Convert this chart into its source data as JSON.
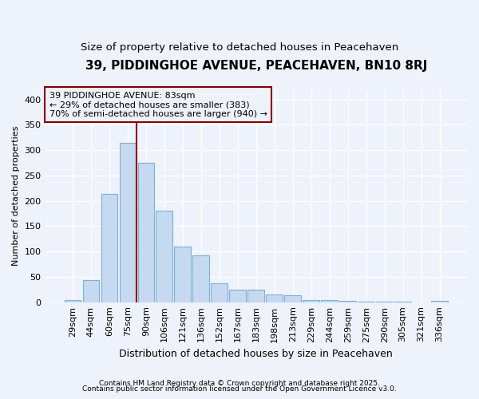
{
  "title": "39, PIDDINGHOE AVENUE, PEACEHAVEN, BN10 8RJ",
  "subtitle": "Size of property relative to detached houses in Peacehaven",
  "xlabel": "Distribution of detached houses by size in Peacehaven",
  "ylabel": "Number of detached properties",
  "bar_labels": [
    "29sqm",
    "44sqm",
    "60sqm",
    "75sqm",
    "90sqm",
    "106sqm",
    "121sqm",
    "136sqm",
    "152sqm",
    "167sqm",
    "183sqm",
    "198sqm",
    "213sqm",
    "229sqm",
    "244sqm",
    "259sqm",
    "275sqm",
    "290sqm",
    "305sqm",
    "321sqm",
    "336sqm"
  ],
  "bar_values": [
    5,
    43,
    213,
    315,
    275,
    180,
    110,
    93,
    38,
    25,
    25,
    15,
    13,
    5,
    5,
    2,
    1,
    1,
    1,
    0,
    3
  ],
  "bar_color": "#c5d9f0",
  "bar_edge_color": "#7fafd4",
  "highlight_color": "#8b0000",
  "annotation_text": "39 PIDDINGHOE AVENUE: 83sqm\n← 29% of detached houses are smaller (383)\n70% of semi-detached houses are larger (940) →",
  "annotation_box_color": "#8b0000",
  "vline_x": 3.5,
  "ylim": [
    0,
    420
  ],
  "yticks": [
    0,
    50,
    100,
    150,
    200,
    250,
    300,
    350,
    400
  ],
  "footnote1": "Contains HM Land Registry data © Crown copyright and database right 2025.",
  "footnote2": "Contains public sector information licensed under the Open Government Licence v3.0.",
  "bg_color": "#eef2fb",
  "grid_color": "#ffffff",
  "title_fontsize": 11,
  "subtitle_fontsize": 9.5,
  "xlabel_fontsize": 9,
  "ylabel_fontsize": 8,
  "tick_fontsize": 8,
  "annot_fontsize": 8
}
